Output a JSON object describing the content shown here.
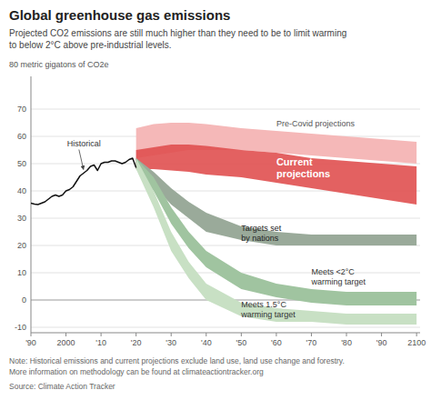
{
  "chart_data": {
    "type": "area",
    "title": "Global greenhouse gas emissions",
    "subtitle": "Projected CO2 emissions are still much higher than they need to be to limit warming\nto below 2°C above pre-industrial levels.",
    "y_label": "80 metric gigatons of CO2e",
    "note": "Note: Historical emissions and current projections exclude land use, land use change and forestry.\nMore information on methodology can be found at climateactiontracker.org",
    "source": "Source: Climate Action Tracker",
    "xlim": [
      1990,
      2101
    ],
    "ylim": [
      -12,
      82
    ],
    "yticks": [
      -10,
      0,
      10,
      20,
      30,
      40,
      50,
      60,
      70
    ],
    "xticks": [
      {
        "value": 1990,
        "label": "'90"
      },
      2000,
      {
        "value": 2010,
        "label": "'10"
      },
      {
        "value": 2020,
        "label": "'20"
      },
      {
        "value": 2030,
        "label": "'30"
      },
      {
        "value": 2040,
        "label": "'40"
      },
      {
        "value": 2050,
        "label": "'50"
      },
      {
        "value": 2060,
        "label": "'60"
      },
      {
        "value": 2070,
        "label": "'70"
      },
      {
        "value": 2080,
        "label": "'80"
      },
      {
        "value": 2090,
        "label": "'90"
      },
      2100
    ],
    "grid": true,
    "series": [
      {
        "name": "Pre-Covid projections",
        "type": "area",
        "color": "#f5b8b8",
        "x": [
          2020,
          2025,
          2030,
          2035,
          2040,
          2050,
          2060,
          2070,
          2080,
          2090,
          2100
        ],
        "upper": [
          63,
          64.5,
          65,
          65,
          64.5,
          63,
          62,
          61,
          60,
          59,
          58
        ],
        "lower": [
          52,
          53,
          54,
          55,
          55,
          55,
          54,
          53,
          52,
          51,
          50
        ]
      },
      {
        "name": "Current\nprojections",
        "type": "area",
        "color": "#e05050",
        "x": [
          2020,
          2025,
          2030,
          2035,
          2040,
          2050,
          2060,
          2070,
          2080,
          2090,
          2100
        ],
        "upper": [
          55,
          56,
          57,
          57,
          56.5,
          55,
          54,
          52,
          51,
          50,
          49
        ],
        "lower": [
          48,
          48,
          47.5,
          47,
          46,
          45,
          43,
          41,
          39,
          37,
          35
        ]
      },
      {
        "name": "Targets set\nby nations",
        "type": "area",
        "color": "#9aaa9a",
        "x": [
          2020,
          2025,
          2030,
          2035,
          2040,
          2050,
          2060,
          2070,
          2080,
          2090,
          2100
        ],
        "upper": [
          52,
          47,
          41,
          36,
          32,
          27,
          25,
          24,
          24,
          24,
          24
        ],
        "lower": [
          48,
          42,
          35,
          30,
          25,
          22,
          20,
          20,
          20,
          20,
          20
        ]
      },
      {
        "name": "Meets <2°C\nwarming target",
        "type": "area",
        "color": "#a0c4a0",
        "x": [
          2020,
          2025,
          2030,
          2035,
          2040,
          2050,
          2060,
          2070,
          2080,
          2090,
          2100
        ],
        "upper": [
          52,
          45,
          34,
          25,
          18,
          10,
          6,
          4,
          3,
          3,
          3
        ],
        "lower": [
          48,
          40,
          28,
          19,
          12,
          4,
          1,
          -1,
          -2,
          -2,
          -2
        ]
      },
      {
        "name": "Meets 1.5°C\nwarming target",
        "type": "area",
        "color": "#c8e0c4",
        "x": [
          2020,
          2025,
          2030,
          2035,
          2040,
          2050,
          2060,
          2070,
          2080,
          2090,
          2100
        ],
        "upper": [
          52,
          40,
          25,
          14,
          6,
          -1,
          -3,
          -4,
          -5,
          -5,
          -5
        ],
        "lower": [
          48,
          34,
          18,
          8,
          0,
          -6,
          -8,
          -8,
          -9,
          -9,
          -9
        ]
      },
      {
        "name": "Historical",
        "type": "line",
        "color": "#111111",
        "x": [
          1990,
          1991,
          1992,
          1993,
          1994,
          1995,
          1996,
          1997,
          1998,
          1999,
          2000,
          2001,
          2002,
          2003,
          2004,
          2005,
          2006,
          2007,
          2008,
          2009,
          2010,
          2011,
          2012,
          2013,
          2014,
          2015,
          2016,
          2017,
          2018,
          2019,
          2020
        ],
        "values": [
          35.5,
          35.2,
          35.0,
          35.5,
          36.0,
          37.0,
          38.0,
          38.5,
          38.0,
          38.5,
          40.0,
          40.5,
          41.5,
          43.5,
          45.5,
          46.5,
          47.5,
          49.0,
          49.5,
          47.5,
          50.0,
          50.5,
          50.5,
          51.0,
          51.0,
          50.5,
          50.0,
          50.5,
          51.5,
          52.0,
          48.5
        ]
      }
    ]
  }
}
